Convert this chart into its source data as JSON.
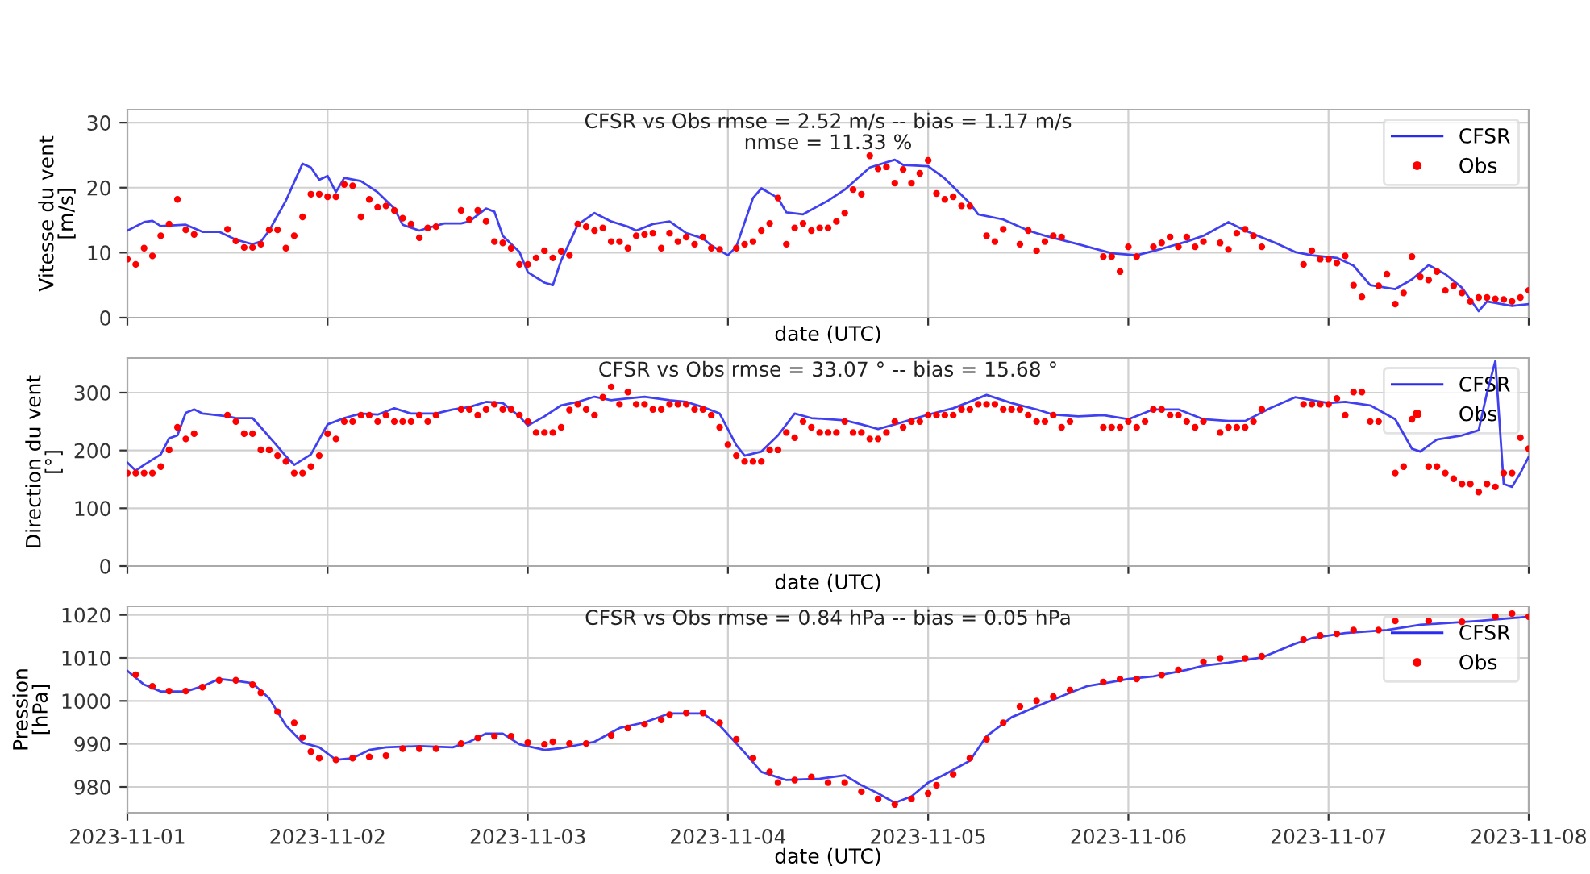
{
  "chart_data": [
    {
      "type": "line",
      "title": "CFSR vs Obs rmse = 2.52 m/s -- bias = 1.17 m/s\nnmse = 11.33 %",
      "xlabel": "date (UTC)",
      "ylabel": "Vitesse du vent\n[m/s]",
      "xlim": [
        "2023-11-01",
        "2023-11-08"
      ],
      "xticks": [
        "2023-11-01",
        "2023-11-02",
        "2023-11-03",
        "2023-11-04",
        "2023-11-05",
        "2023-11-06",
        "2023-11-07",
        "2023-11-08"
      ],
      "ylim": [
        0,
        32
      ],
      "yticks": [
        0,
        10,
        20,
        30
      ],
      "tick_labels": "y",
      "grid": true,
      "legend": "top right",
      "series": [
        {
          "name": "CFSR",
          "color": "#2b2bf0",
          "line_style": "solid",
          "x": [
            "2023-11-01T00:00",
            "2023-11-01T02:00",
            "2023-11-01T03:00",
            "2023-11-01T04:00",
            "2023-11-01T07:00",
            "2023-11-01T09:00",
            "2023-11-01T11:00",
            "2023-11-01T13:00",
            "2023-11-01T15:00",
            "2023-11-01T16:00",
            "2023-11-01T17:00",
            "2023-11-01T19:00",
            "2023-11-01T21:00",
            "2023-11-01T22:00",
            "2023-11-01T23:00",
            "2023-11-02T00:00",
            "2023-11-02T01:00",
            "2023-11-02T02:00",
            "2023-11-02T04:00",
            "2023-11-02T06:00",
            "2023-11-02T08:00",
            "2023-11-02T09:00",
            "2023-11-02T11:00",
            "2023-11-02T12:00",
            "2023-11-02T14:00",
            "2023-11-02T16:00",
            "2023-11-02T17:00",
            "2023-11-02T19:00",
            "2023-11-02T20:00",
            "2023-11-02T21:00",
            "2023-11-02T23:00",
            "2023-11-03T00:00",
            "2023-11-03T02:00",
            "2023-11-03T03:00",
            "2023-11-03T04:00",
            "2023-11-03T06:00",
            "2023-11-03T08:00",
            "2023-11-03T10:00",
            "2023-11-03T12:00",
            "2023-11-03T13:00",
            "2023-11-03T15:00",
            "2023-11-03T17:00",
            "2023-11-03T19:00",
            "2023-11-03T21:00",
            "2023-11-03T22:00",
            "2023-11-04T00:00",
            "2023-11-04T01:00",
            "2023-11-04T03:00",
            "2023-11-04T04:00",
            "2023-11-04T06:00",
            "2023-11-04T07:00",
            "2023-11-04T09:00",
            "2023-11-04T12:00",
            "2023-11-04T14:00",
            "2023-11-04T17:00",
            "2023-11-04T20:00",
            "2023-11-04T21:00",
            "2023-11-05T00:00",
            "2023-11-05T02:00",
            "2023-11-05T05:00",
            "2023-11-05T06:00",
            "2023-11-05T09:00",
            "2023-11-05T12:00",
            "2023-11-05T14:00",
            "2023-11-05T18:00",
            "2023-11-05T22:00",
            "2023-11-06T01:00",
            "2023-11-06T04:00",
            "2023-11-06T07:00",
            "2023-11-06T09:00",
            "2023-11-06T12:00",
            "2023-11-06T14:00",
            "2023-11-06T18:00",
            "2023-11-06T20:00",
            "2023-11-06T22:00",
            "2023-11-07T01:00",
            "2023-11-07T03:00",
            "2023-11-07T05:00",
            "2023-11-07T08:00",
            "2023-11-07T10:00",
            "2023-11-07T12:00",
            "2023-11-07T14:00",
            "2023-11-07T16:00",
            "2023-11-07T18:00",
            "2023-11-07T19:00",
            "2023-11-07T22:00",
            "2023-11-08T00:00"
          ],
          "values": [
            13.4,
            14.7,
            14.9,
            14.1,
            14.3,
            13.2,
            13.2,
            12.0,
            11.3,
            11.7,
            13.4,
            18.0,
            23.7,
            23.1,
            21.2,
            21.8,
            19.3,
            21.5,
            21.0,
            19.3,
            16.8,
            14.3,
            13.4,
            13.8,
            14.5,
            14.5,
            14.8,
            16.8,
            16.3,
            12.6,
            10.1,
            7.0,
            5.4,
            5.0,
            8.8,
            14.3,
            16.1,
            14.8,
            14.0,
            13.4,
            14.4,
            14.8,
            13.0,
            12.2,
            11.1,
            9.6,
            10.9,
            18.4,
            19.9,
            18.4,
            16.2,
            15.9,
            18.0,
            19.7,
            23.1,
            24.3,
            23.5,
            23.3,
            21.4,
            17.6,
            15.9,
            15.1,
            13.4,
            12.6,
            11.3,
            9.9,
            9.6,
            10.6,
            11.7,
            12.6,
            14.7,
            13.4,
            11.3,
            10.1,
            9.6,
            9.2,
            8.0,
            5.0,
            4.4,
            5.9,
            8.1,
            6.7,
            4.6,
            1.0,
            2.5,
            1.8,
            2.1
          ]
        },
        {
          "name": "Obs",
          "type": "scatter",
          "color": "#ff0000",
          "marker": "circle",
          "x": [
            "2023-11-01T00:00",
            "2023-11-01T01:00",
            "2023-11-01T02:00",
            "2023-11-01T03:00",
            "2023-11-01T04:00",
            "2023-11-01T05:00",
            "2023-11-01T06:00",
            "2023-11-01T07:00",
            "2023-11-01T08:00",
            "2023-11-01T12:00",
            "2023-11-01T13:00",
            "2023-11-01T14:00",
            "2023-11-01T15:00",
            "2023-11-01T16:00",
            "2023-11-01T17:00",
            "2023-11-01T18:00",
            "2023-11-01T19:00",
            "2023-11-01T20:00",
            "2023-11-01T21:00",
            "2023-11-01T22:00",
            "2023-11-01T23:00",
            "2023-11-02T00:00",
            "2023-11-02T01:00",
            "2023-11-02T02:00",
            "2023-11-02T03:00",
            "2023-11-02T04:00",
            "2023-11-02T05:00",
            "2023-11-02T06:00",
            "2023-11-02T07:00",
            "2023-11-02T08:00",
            "2023-11-02T09:00",
            "2023-11-02T10:00",
            "2023-11-02T11:00",
            "2023-11-02T12:00",
            "2023-11-02T13:00",
            "2023-11-02T16:00",
            "2023-11-02T17:00",
            "2023-11-02T18:00",
            "2023-11-02T19:00",
            "2023-11-02T20:00",
            "2023-11-02T21:00",
            "2023-11-02T22:00",
            "2023-11-02T23:00",
            "2023-11-03T00:00",
            "2023-11-03T01:00",
            "2023-11-03T02:00",
            "2023-11-03T03:00",
            "2023-11-03T04:00",
            "2023-11-03T05:00",
            "2023-11-03T06:00",
            "2023-11-03T07:00",
            "2023-11-03T08:00",
            "2023-11-03T09:00",
            "2023-11-03T10:00",
            "2023-11-03T11:00",
            "2023-11-03T12:00",
            "2023-11-03T13:00",
            "2023-11-03T14:00",
            "2023-11-03T15:00",
            "2023-11-03T16:00",
            "2023-11-03T17:00",
            "2023-11-03T18:00",
            "2023-11-03T19:00",
            "2023-11-03T20:00",
            "2023-11-03T21:00",
            "2023-11-03T22:00",
            "2023-11-03T23:00",
            "2023-11-04T01:00",
            "2023-11-04T02:00",
            "2023-11-04T03:00",
            "2023-11-04T04:00",
            "2023-11-04T05:00",
            "2023-11-04T06:00",
            "2023-11-04T07:00",
            "2023-11-04T08:00",
            "2023-11-04T09:00",
            "2023-11-04T10:00",
            "2023-11-04T11:00",
            "2023-11-04T12:00",
            "2023-11-04T13:00",
            "2023-11-04T14:00",
            "2023-11-04T15:00",
            "2023-11-04T16:00",
            "2023-11-04T17:00",
            "2023-11-04T18:00",
            "2023-11-04T19:00",
            "2023-11-04T20:00",
            "2023-11-04T21:00",
            "2023-11-04T22:00",
            "2023-11-04T23:00",
            "2023-11-05T00:00",
            "2023-11-05T01:00",
            "2023-11-05T02:00",
            "2023-11-05T03:00",
            "2023-11-05T04:00",
            "2023-11-05T05:00",
            "2023-11-05T07:00",
            "2023-11-05T08:00",
            "2023-11-05T09:00",
            "2023-11-05T11:00",
            "2023-11-05T12:00",
            "2023-11-05T13:00",
            "2023-11-05T14:00",
            "2023-11-05T15:00",
            "2023-11-05T16:00",
            "2023-11-05T21:00",
            "2023-11-05T22:00",
            "2023-11-05T23:00",
            "2023-11-06T00:00",
            "2023-11-06T01:00",
            "2023-11-06T03:00",
            "2023-11-06T04:00",
            "2023-11-06T05:00",
            "2023-11-06T06:00",
            "2023-11-06T07:00",
            "2023-11-06T08:00",
            "2023-11-06T09:00",
            "2023-11-06T11:00",
            "2023-11-06T12:00",
            "2023-11-06T13:00",
            "2023-11-06T14:00",
            "2023-11-06T15:00",
            "2023-11-06T16:00",
            "2023-11-06T21:00",
            "2023-11-06T22:00",
            "2023-11-06T23:00",
            "2023-11-07T00:00",
            "2023-11-07T01:00",
            "2023-11-07T02:00",
            "2023-11-07T03:00",
            "2023-11-07T04:00",
            "2023-11-07T06:00",
            "2023-11-07T07:00",
            "2023-11-07T08:00",
            "2023-11-07T09:00",
            "2023-11-07T10:00",
            "2023-11-07T11:00",
            "2023-11-07T12:00",
            "2023-11-07T13:00",
            "2023-11-07T14:00",
            "2023-11-07T15:00",
            "2023-11-07T16:00",
            "2023-11-07T17:00",
            "2023-11-07T18:00",
            "2023-11-07T19:00",
            "2023-11-07T20:00",
            "2023-11-07T21:00",
            "2023-11-07T22:00",
            "2023-11-07T23:00",
            "2023-11-08T00:00"
          ],
          "values": [
            9.0,
            8.2,
            10.7,
            9.5,
            12.6,
            14.4,
            18.2,
            13.5,
            12.8,
            13.6,
            11.8,
            10.8,
            10.8,
            11.3,
            13.5,
            13.5,
            10.7,
            12.6,
            15.5,
            19.0,
            19.0,
            18.6,
            18.6,
            20.5,
            20.3,
            15.5,
            18.2,
            17.0,
            17.2,
            16.5,
            15.3,
            14.4,
            12.3,
            13.8,
            14.0,
            16.5,
            15.1,
            16.5,
            14.8,
            11.7,
            11.5,
            10.7,
            8.2,
            8.2,
            9.2,
            10.3,
            9.2,
            10.2,
            9.6,
            14.4,
            14.0,
            13.4,
            13.8,
            11.7,
            11.7,
            10.7,
            12.6,
            12.8,
            13.0,
            10.7,
            13.0,
            11.7,
            12.4,
            11.3,
            12.4,
            10.7,
            10.5,
            10.7,
            11.3,
            11.7,
            13.4,
            14.5,
            18.4,
            11.3,
            13.8,
            14.5,
            13.4,
            13.8,
            13.8,
            14.8,
            16.1,
            19.7,
            19.0,
            24.9,
            22.9,
            23.2,
            20.7,
            22.8,
            20.7,
            22.2,
            24.2,
            19.1,
            18.2,
            18.6,
            17.2,
            17.2,
            12.6,
            11.7,
            13.6,
            11.3,
            13.4,
            10.3,
            11.7,
            12.6,
            12.4,
            9.4,
            9.4,
            7.1,
            10.9,
            9.4,
            10.9,
            11.5,
            12.4,
            10.9,
            12.4,
            10.9,
            11.7,
            11.5,
            10.5,
            13.0,
            13.6,
            12.6,
            10.9,
            8.2,
            10.3,
            9.0,
            9.0,
            8.4,
            9.5,
            5.0,
            3.2,
            4.9,
            6.7,
            2.1,
            3.8,
            9.4,
            6.3,
            5.8,
            7.1,
            4.2,
            4.9,
            3.8,
            2.5,
            3.1,
            3.1,
            2.9,
            2.8,
            2.5,
            3.1,
            4.2
          ]
        }
      ]
    },
    {
      "type": "line",
      "title": "CFSR vs Obs rmse = 33.07 ° -- bias = 15.68 °",
      "xlabel": "date (UTC)",
      "ylabel": "Direction du vent\n[°]",
      "xlim": [
        "2023-11-01",
        "2023-11-08"
      ],
      "xticks": [
        "2023-11-01",
        "2023-11-02",
        "2023-11-03",
        "2023-11-04",
        "2023-11-05",
        "2023-11-06",
        "2023-11-07",
        "2023-11-08"
      ],
      "ylim": [
        0,
        360
      ],
      "yticks": [
        0,
        100,
        200,
        300
      ],
      "tick_labels": "y",
      "grid": true,
      "legend": "top right",
      "series": [
        {
          "name": "CFSR",
          "color": "#2b2bf0",
          "line_style": "solid",
          "x": [
            "2023-11-01T00:00",
            "2023-11-01T01:00",
            "2023-11-01T02:00",
            "2023-11-01T04:00",
            "2023-11-01T05:00",
            "2023-11-01T06:00",
            "2023-11-01T07:00",
            "2023-11-01T08:00",
            "2023-11-01T09:00",
            "2023-11-01T12:00",
            "2023-11-01T13:00",
            "2023-11-01T15:00",
            "2023-11-01T16:00",
            "2023-11-01T18:00",
            "2023-11-01T19:00",
            "2023-11-01T20:00",
            "2023-11-01T22:00",
            "2023-11-02T00:00",
            "2023-11-02T02:00",
            "2023-11-02T04:00",
            "2023-11-02T06:00",
            "2023-11-02T08:00",
            "2023-11-02T10:00",
            "2023-11-02T13:00",
            "2023-11-02T15:00",
            "2023-11-02T17:00",
            "2023-11-02T19:00",
            "2023-11-02T21:00",
            "2023-11-02T23:00",
            "2023-11-03T00:00",
            "2023-11-03T02:00",
            "2023-11-03T04:00",
            "2023-11-03T06:00",
            "2023-11-03T08:00",
            "2023-11-03T10:00",
            "2023-11-03T12:00",
            "2023-11-03T14:00",
            "2023-11-03T17:00",
            "2023-11-03T19:00",
            "2023-11-03T21:00",
            "2023-11-03T23:00",
            "2023-11-04T01:00",
            "2023-11-04T02:00",
            "2023-11-04T04:00",
            "2023-11-04T06:00",
            "2023-11-04T08:00",
            "2023-11-04T10:00",
            "2023-11-04T14:00",
            "2023-11-04T16:00",
            "2023-11-04T18:00",
            "2023-11-04T20:00",
            "2023-11-05T00:00",
            "2023-11-05T03:00",
            "2023-11-05T07:00",
            "2023-11-05T10:00",
            "2023-11-05T13:00",
            "2023-11-05T15:00",
            "2023-11-05T18:00",
            "2023-11-05T21:00",
            "2023-11-06T00:00",
            "2023-11-06T03:00",
            "2023-11-06T06:00",
            "2023-11-06T09:00",
            "2023-11-06T12:00",
            "2023-11-06T14:00",
            "2023-11-06T17:00",
            "2023-11-06T20:00",
            "2023-11-06T22:00",
            "2023-11-07T00:00",
            "2023-11-07T02:00",
            "2023-11-07T05:00",
            "2023-11-07T08:00",
            "2023-11-07T10:00",
            "2023-11-07T11:00",
            "2023-11-07T13:00",
            "2023-11-07T16:00",
            "2023-11-07T18:00",
            "2023-11-07T19:00",
            "2023-11-07T20:00",
            "2023-11-07T21:00",
            "2023-11-07T22:00",
            "2023-11-07T23:00",
            "2023-11-08T00:00"
          ],
          "values": [
            179,
            165,
            175,
            193,
            221,
            226,
            265,
            271,
            264,
            259,
            256,
            256,
            240,
            207,
            190,
            175,
            193,
            245,
            256,
            264,
            262,
            273,
            264,
            264,
            271,
            275,
            284,
            282,
            259,
            243,
            259,
            278,
            284,
            293,
            287,
            290,
            293,
            287,
            284,
            275,
            264,
            209,
            191,
            198,
            226,
            264,
            256,
            252,
            245,
            237,
            245,
            262,
            273,
            296,
            282,
            271,
            262,
            259,
            261,
            254,
            271,
            271,
            254,
            251,
            251,
            273,
            292,
            287,
            282,
            284,
            278,
            254,
            203,
            198,
            219,
            226,
            235,
            300,
            355,
            142,
            137,
            161,
            189
          ]
        },
        {
          "name": "Obs",
          "type": "scatter",
          "color": "#ff0000",
          "marker": "circle",
          "x": [
            "2023-11-01T00:00",
            "2023-11-01T01:00",
            "2023-11-01T02:00",
            "2023-11-01T03:00",
            "2023-11-01T04:00",
            "2023-11-01T05:00",
            "2023-11-01T06:00",
            "2023-11-01T07:00",
            "2023-11-01T08:00",
            "2023-11-01T12:00",
            "2023-11-01T13:00",
            "2023-11-01T14:00",
            "2023-11-01T15:00",
            "2023-11-01T16:00",
            "2023-11-01T17:00",
            "2023-11-01T18:00",
            "2023-11-01T19:00",
            "2023-11-01T20:00",
            "2023-11-01T21:00",
            "2023-11-01T22:00",
            "2023-11-01T23:00",
            "2023-11-02T00:00",
            "2023-11-02T01:00",
            "2023-11-02T02:00",
            "2023-11-02T03:00",
            "2023-11-02T04:00",
            "2023-11-02T05:00",
            "2023-11-02T06:00",
            "2023-11-02T07:00",
            "2023-11-02T08:00",
            "2023-11-02T09:00",
            "2023-11-02T10:00",
            "2023-11-02T11:00",
            "2023-11-02T12:00",
            "2023-11-02T13:00",
            "2023-11-02T16:00",
            "2023-11-02T17:00",
            "2023-11-02T18:00",
            "2023-11-02T19:00",
            "2023-11-02T20:00",
            "2023-11-02T21:00",
            "2023-11-02T22:00",
            "2023-11-02T23:00",
            "2023-11-03T00:00",
            "2023-11-03T01:00",
            "2023-11-03T02:00",
            "2023-11-03T03:00",
            "2023-11-03T04:00",
            "2023-11-03T05:00",
            "2023-11-03T06:00",
            "2023-11-03T07:00",
            "2023-11-03T08:00",
            "2023-11-03T09:00",
            "2023-11-03T10:00",
            "2023-11-03T11:00",
            "2023-11-03T12:00",
            "2023-11-03T13:00",
            "2023-11-03T14:00",
            "2023-11-03T15:00",
            "2023-11-03T16:00",
            "2023-11-03T17:00",
            "2023-11-03T18:00",
            "2023-11-03T19:00",
            "2023-11-03T20:00",
            "2023-11-03T21:00",
            "2023-11-03T22:00",
            "2023-11-03T23:00",
            "2023-11-04T00:00",
            "2023-11-04T01:00",
            "2023-11-04T02:00",
            "2023-11-04T03:00",
            "2023-11-04T04:00",
            "2023-11-04T05:00",
            "2023-11-04T06:00",
            "2023-11-04T07:00",
            "2023-11-04T08:00",
            "2023-11-04T09:00",
            "2023-11-04T10:00",
            "2023-11-04T11:00",
            "2023-11-04T12:00",
            "2023-11-04T13:00",
            "2023-11-04T14:00",
            "2023-11-04T15:00",
            "2023-11-04T16:00",
            "2023-11-04T17:00",
            "2023-11-04T18:00",
            "2023-11-04T19:00",
            "2023-11-04T20:00",
            "2023-11-04T21:00",
            "2023-11-04T22:00",
            "2023-11-04T23:00",
            "2023-11-05T00:00",
            "2023-11-05T01:00",
            "2023-11-05T02:00",
            "2023-11-05T03:00",
            "2023-11-05T04:00",
            "2023-11-05T05:00",
            "2023-11-05T06:00",
            "2023-11-05T07:00",
            "2023-11-05T08:00",
            "2023-11-05T09:00",
            "2023-11-05T10:00",
            "2023-11-05T11:00",
            "2023-11-05T12:00",
            "2023-11-05T13:00",
            "2023-11-05T14:00",
            "2023-11-05T15:00",
            "2023-11-05T16:00",
            "2023-11-05T17:00",
            "2023-11-05T21:00",
            "2023-11-05T22:00",
            "2023-11-05T23:00",
            "2023-11-06T00:00",
            "2023-11-06T01:00",
            "2023-11-06T02:00",
            "2023-11-06T03:00",
            "2023-11-06T04:00",
            "2023-11-06T05:00",
            "2023-11-06T06:00",
            "2023-11-06T07:00",
            "2023-11-06T08:00",
            "2023-11-06T09:00",
            "2023-11-06T11:00",
            "2023-11-06T12:00",
            "2023-11-06T13:00",
            "2023-11-06T14:00",
            "2023-11-06T15:00",
            "2023-11-06T16:00",
            "2023-11-06T21:00",
            "2023-11-06T22:00",
            "2023-11-06T23:00",
            "2023-11-07T00:00",
            "2023-11-07T01:00",
            "2023-11-07T02:00",
            "2023-11-07T03:00",
            "2023-11-07T04:00",
            "2023-11-07T05:00",
            "2023-11-07T06:00",
            "2023-11-07T08:00",
            "2023-11-07T09:00",
            "2023-11-07T10:00",
            "2023-11-07T12:00",
            "2023-11-07T13:00",
            "2023-11-07T14:00",
            "2023-11-07T15:00",
            "2023-11-07T16:00",
            "2023-11-07T17:00",
            "2023-11-07T18:00",
            "2023-11-07T19:00",
            "2023-11-07T20:00",
            "2023-11-07T21:00",
            "2023-11-07T22:00",
            "2023-11-07T23:00",
            "2023-11-08T00:00"
          ],
          "values": [
            161,
            161,
            161,
            161,
            172,
            201,
            240,
            220,
            229,
            261,
            250,
            229,
            229,
            201,
            201,
            191,
            181,
            161,
            161,
            172,
            191,
            229,
            220,
            250,
            250,
            261,
            261,
            250,
            261,
            250,
            250,
            250,
            261,
            250,
            261,
            271,
            271,
            261,
            271,
            280,
            271,
            271,
            261,
            250,
            231,
            231,
            231,
            240,
            270,
            280,
            271,
            261,
            292,
            310,
            280,
            301,
            280,
            280,
            271,
            271,
            280,
            280,
            280,
            271,
            271,
            261,
            240,
            210,
            191,
            181,
            181,
            181,
            201,
            201,
            231,
            222,
            250,
            240,
            231,
            231,
            231,
            250,
            231,
            231,
            220,
            220,
            231,
            250,
            240,
            250,
            250,
            261,
            261,
            261,
            261,
            271,
            271,
            280,
            280,
            280,
            271,
            271,
            271,
            261,
            250,
            250,
            261,
            240,
            250,
            240,
            240,
            240,
            250,
            240,
            250,
            271,
            271,
            261,
            261,
            250,
            240,
            250,
            231,
            240,
            240,
            240,
            250,
            271,
            280,
            280,
            280,
            280,
            290,
            261,
            301,
            301,
            250,
            250,
            161,
            172,
            254,
            172,
            172,
            161,
            151,
            142,
            142,
            128,
            142,
            137,
            161,
            161,
            222,
            203
          ]
        }
      ]
    },
    {
      "type": "line",
      "title": "CFSR vs Obs rmse = 0.84 hPa -- bias = 0.05 hPa",
      "xlabel": "date (UTC)",
      "ylabel": "Pression\n[hPa]",
      "xlim": [
        "2023-11-01",
        "2023-11-08"
      ],
      "xticks": [
        "2023-11-01",
        "2023-11-02",
        "2023-11-03",
        "2023-11-04",
        "2023-11-05",
        "2023-11-06",
        "2023-11-07",
        "2023-11-08"
      ],
      "ylim": [
        974,
        1022
      ],
      "yticks": [
        980,
        990,
        1000,
        1010,
        1020
      ],
      "grid": true,
      "legend": "top right",
      "series": [
        {
          "name": "CFSR",
          "color": "#2b2bf0",
          "line_style": "solid",
          "x": [
            "2023-11-01T00:00",
            "2023-11-01T02:00",
            "2023-11-01T04:00",
            "2023-11-01T07:00",
            "2023-11-01T09:00",
            "2023-11-01T11:00",
            "2023-11-01T13:00",
            "2023-11-01T15:00",
            "2023-11-01T17:00",
            "2023-11-01T19:00",
            "2023-11-01T21:00",
            "2023-11-01T23:00",
            "2023-11-02T01:00",
            "2023-11-02T03:00",
            "2023-11-02T05:00",
            "2023-11-02T07:00",
            "2023-11-02T11:00",
            "2023-11-02T15:00",
            "2023-11-02T17:00",
            "2023-11-02T19:00",
            "2023-11-02T21:00",
            "2023-11-02T23:00",
            "2023-11-03T02:00",
            "2023-11-03T04:00",
            "2023-11-03T08:00",
            "2023-11-03T11:00",
            "2023-11-03T14:00",
            "2023-11-03T17:00",
            "2023-11-03T21:00",
            "2023-11-03T23:00",
            "2023-11-04T02:00",
            "2023-11-04T04:00",
            "2023-11-04T07:00",
            "2023-11-04T11:00",
            "2023-11-04T14:00",
            "2023-11-04T16:00",
            "2023-11-04T18:00",
            "2023-11-04T20:00",
            "2023-11-04T22:00",
            "2023-11-05T00:00",
            "2023-11-05T02:00",
            "2023-11-05T05:00",
            "2023-11-05T07:00",
            "2023-11-05T10:00",
            "2023-11-05T13:00",
            "2023-11-05T17:00",
            "2023-11-05T19:00",
            "2023-11-05T22:00",
            "2023-11-06T00:00",
            "2023-11-06T03:00",
            "2023-11-06T07:00",
            "2023-11-06T09:00",
            "2023-11-06T12:00",
            "2023-11-06T16:00",
            "2023-11-06T20:00",
            "2023-11-06T22:00",
            "2023-11-07T02:00",
            "2023-11-07T07:00",
            "2023-11-07T11:00",
            "2023-11-07T18:00",
            "2023-11-08T00:00"
          ],
          "values": [
            1007.0,
            1003.8,
            1002.2,
            1002.2,
            1003.4,
            1005.1,
            1004.7,
            1004.1,
            1000.6,
            994.3,
            990.3,
            989.2,
            986.3,
            986.7,
            988.6,
            989.2,
            989.5,
            989.2,
            990.5,
            992.4,
            992.4,
            989.9,
            988.6,
            989.0,
            990.5,
            993.7,
            995.0,
            997.1,
            997.1,
            994.3,
            988.0,
            983.5,
            981.6,
            981.9,
            982.7,
            980.4,
            978.5,
            976.3,
            977.8,
            981.0,
            982.9,
            986.1,
            991.8,
            996.2,
            998.7,
            1001.9,
            1003.4,
            1004.4,
            1005.1,
            1005.7,
            1007.2,
            1008.2,
            1008.9,
            1010.1,
            1013.3,
            1014.6,
            1015.8,
            1016.5,
            1017.7,
            1018.6,
            1019.6
          ]
        },
        {
          "name": "Obs",
          "type": "scatter",
          "color": "#ff0000",
          "marker": "circle",
          "x": [
            "2023-11-01T01:00",
            "2023-11-01T03:00",
            "2023-11-01T05:00",
            "2023-11-01T07:00",
            "2023-11-01T09:00",
            "2023-11-01T11:00",
            "2023-11-01T13:00",
            "2023-11-01T15:00",
            "2023-11-01T16:00",
            "2023-11-01T18:00",
            "2023-11-01T20:00",
            "2023-11-01T21:00",
            "2023-11-01T22:00",
            "2023-11-01T23:00",
            "2023-11-02T01:00",
            "2023-11-02T03:00",
            "2023-11-02T05:00",
            "2023-11-02T07:00",
            "2023-11-02T09:00",
            "2023-11-02T11:00",
            "2023-11-02T13:00",
            "2023-11-02T16:00",
            "2023-11-02T18:00",
            "2023-11-02T20:00",
            "2023-11-02T22:00",
            "2023-11-03T00:00",
            "2023-11-03T02:00",
            "2023-11-03T03:00",
            "2023-11-03T05:00",
            "2023-11-03T07:00",
            "2023-11-03T10:00",
            "2023-11-03T12:00",
            "2023-11-03T14:00",
            "2023-11-03T16:00",
            "2023-11-03T17:00",
            "2023-11-03T19:00",
            "2023-11-03T21:00",
            "2023-11-03T23:00",
            "2023-11-04T01:00",
            "2023-11-04T03:00",
            "2023-11-04T05:00",
            "2023-11-04T06:00",
            "2023-11-04T08:00",
            "2023-11-04T10:00",
            "2023-11-04T12:00",
            "2023-11-04T14:00",
            "2023-11-04T16:00",
            "2023-11-04T18:00",
            "2023-11-04T20:00",
            "2023-11-04T22:00",
            "2023-11-05T00:00",
            "2023-11-05T01:00",
            "2023-11-05T03:00",
            "2023-11-05T05:00",
            "2023-11-05T07:00",
            "2023-11-05T09:00",
            "2023-11-05T11:00",
            "2023-11-05T13:00",
            "2023-11-05T15:00",
            "2023-11-05T17:00",
            "2023-11-05T21:00",
            "2023-11-05T23:00",
            "2023-11-06T01:00",
            "2023-11-06T04:00",
            "2023-11-06T06:00",
            "2023-11-06T09:00",
            "2023-11-06T11:00",
            "2023-11-06T14:00",
            "2023-11-06T16:00",
            "2023-11-06T21:00",
            "2023-11-06T23:00",
            "2023-11-07T01:00",
            "2023-11-07T03:00",
            "2023-11-07T06:00",
            "2023-11-07T08:00",
            "2023-11-07T12:00",
            "2023-11-07T16:00",
            "2023-11-07T20:00",
            "2023-11-07T22:00",
            "2023-11-08T00:00"
          ],
          "values": [
            1006.1,
            1003.4,
            1002.3,
            1002.3,
            1003.2,
            1004.8,
            1004.8,
            1003.8,
            1001.9,
            997.5,
            994.9,
            991.5,
            988.2,
            986.7,
            986.3,
            986.7,
            987.0,
            987.3,
            988.9,
            988.9,
            988.9,
            990.1,
            991.4,
            991.8,
            991.8,
            990.3,
            989.9,
            990.5,
            990.1,
            990.1,
            992.0,
            993.7,
            994.6,
            995.6,
            996.8,
            997.2,
            997.2,
            994.9,
            991.1,
            986.7,
            983.5,
            981.0,
            981.6,
            982.3,
            981.0,
            981.0,
            978.9,
            977.2,
            975.9,
            977.2,
            978.5,
            980.4,
            982.9,
            986.7,
            991.1,
            994.9,
            998.7,
            1000.0,
            1001.0,
            1002.5,
            1004.4,
            1005.1,
            1005.1,
            1006.0,
            1007.2,
            1009.1,
            1009.9,
            1009.9,
            1010.4,
            1014.3,
            1015.2,
            1015.6,
            1016.5,
            1016.5,
            1018.6,
            1018.6,
            1018.4,
            1019.6,
            1020.3,
            1019.6
          ]
        }
      ]
    }
  ]
}
